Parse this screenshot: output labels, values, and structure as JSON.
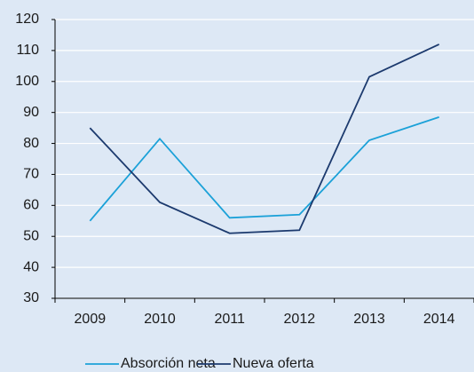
{
  "chart_data": {
    "type": "line",
    "categories": [
      "2009",
      "2010",
      "2011",
      "2012",
      "2013",
      "2014"
    ],
    "series": [
      {
        "name": "Absorción neta",
        "color": "#1ba1d8",
        "values": [
          55,
          81.5,
          56,
          57,
          81,
          88.5
        ]
      },
      {
        "name": "Nueva oferta",
        "color": "#1c3a6e",
        "values": [
          85,
          61,
          51,
          52,
          101.5,
          112
        ]
      }
    ],
    "ylim": [
      30,
      120
    ],
    "yticks": [
      30,
      40,
      50,
      60,
      70,
      80,
      90,
      100,
      110,
      120
    ],
    "grid": true,
    "background": "#dde8f5",
    "legend": "bottom"
  }
}
